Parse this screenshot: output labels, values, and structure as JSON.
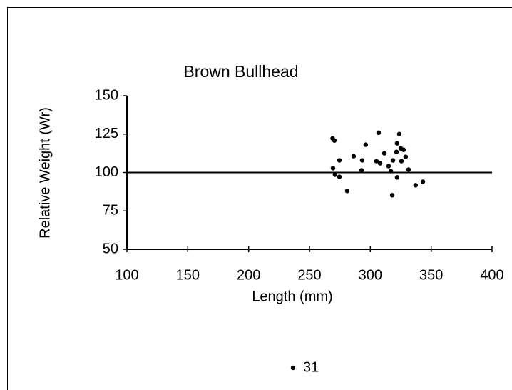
{
  "chart_data": {
    "type": "scatter",
    "title": "Brown Bullhead",
    "x_label": "Length (mm)",
    "y_label": "Relative Weight (Wr)",
    "xlim": [
      100,
      400
    ],
    "xticks": [
      100,
      150,
      200,
      250,
      300,
      350,
      400
    ],
    "ylim": [
      50,
      150
    ],
    "yticks": [
      50,
      75,
      100,
      125,
      150
    ],
    "reference_line": 100,
    "series": [
      {
        "name": "31",
        "color": "#000000",
        "x": [
          269,
          270.5,
          269.3,
          271,
          274.6,
          274.6,
          281,
          286.3,
          292.8,
          293.3,
          296.2,
          305,
          306.8,
          308,
          311.5,
          315,
          316.8,
          318,
          318.6,
          321.5,
          322,
          322,
          323.8,
          325,
          325.6,
          327.3,
          329,
          331.4,
          337.2,
          343.2
        ],
        "values": [
          122.2,
          120.8,
          102.8,
          98.6,
          97.2,
          107.9,
          88,
          110.6,
          101.4,
          107.9,
          118.1,
          107.4,
          125.9,
          106,
          112.5,
          104.2,
          100.9,
          85.2,
          107.9,
          113.4,
          119,
          96.8,
          125,
          115.7,
          107.4,
          114.8,
          110.2,
          101.9,
          91.7,
          94
        ]
      }
    ],
    "legend": "bottom"
  }
}
